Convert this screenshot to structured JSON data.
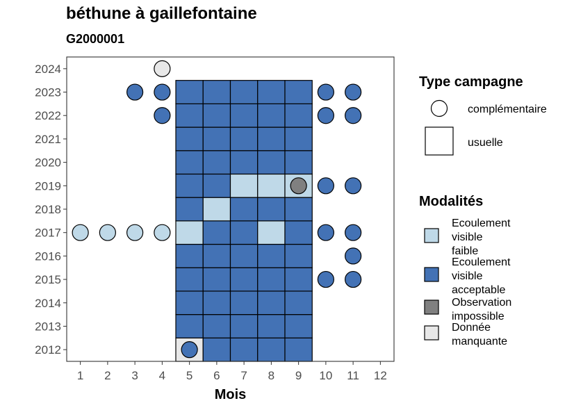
{
  "chart_data": {
    "type": "heatmap",
    "title": "béthune à gaillefontaine",
    "subtitle": "G2000001",
    "xlabel": "Mois",
    "ylabel": "",
    "x_ticks": [
      1,
      2,
      3,
      4,
      5,
      6,
      7,
      8,
      9,
      10,
      11,
      12
    ],
    "y_ticks": [
      2012,
      2013,
      2014,
      2015,
      2016,
      2017,
      2018,
      2019,
      2020,
      2021,
      2022,
      2023,
      2024
    ],
    "xlim": [
      0.5,
      12.5
    ],
    "ylim": [
      2011.5,
      2024.5
    ],
    "grid": false,
    "legend": {
      "placement": "right",
      "type_title": "Type campagne",
      "type_items": [
        {
          "label": "complémentaire",
          "shape": "circle"
        },
        {
          "label": "usuelle",
          "shape": "square"
        }
      ],
      "mod_title": "Modalités",
      "mod_items": [
        {
          "key": "faible",
          "lines": [
            "Ecoulement",
            "visible",
            "faible"
          ],
          "color": "#BFD9E8"
        },
        {
          "key": "acceptable",
          "lines": [
            "Ecoulement",
            "visible",
            "acceptable"
          ],
          "color": "#4372B5"
        },
        {
          "key": "impossible",
          "lines": [
            "Observation",
            "impossible"
          ],
          "color": "#808080"
        },
        {
          "key": "manquante",
          "lines": [
            "Donnée",
            "manquante"
          ],
          "color": "#E8E8E8"
        }
      ]
    },
    "colors": {
      "faible": "#BFD9E8",
      "acceptable": "#4372B5",
      "impossible": "#808080",
      "manquante": "#E8E8E8"
    },
    "usuelle": [
      {
        "month": 5,
        "year": 2012,
        "mod": "manquante"
      },
      {
        "month": 6,
        "year": 2012,
        "mod": "acceptable"
      },
      {
        "month": 7,
        "year": 2012,
        "mod": "acceptable"
      },
      {
        "month": 8,
        "year": 2012,
        "mod": "acceptable"
      },
      {
        "month": 9,
        "year": 2012,
        "mod": "acceptable"
      },
      {
        "month": 5,
        "year": 2013,
        "mod": "acceptable"
      },
      {
        "month": 6,
        "year": 2013,
        "mod": "acceptable"
      },
      {
        "month": 7,
        "year": 2013,
        "mod": "acceptable"
      },
      {
        "month": 8,
        "year": 2013,
        "mod": "acceptable"
      },
      {
        "month": 9,
        "year": 2013,
        "mod": "acceptable"
      },
      {
        "month": 5,
        "year": 2014,
        "mod": "acceptable"
      },
      {
        "month": 6,
        "year": 2014,
        "mod": "acceptable"
      },
      {
        "month": 7,
        "year": 2014,
        "mod": "acceptable"
      },
      {
        "month": 8,
        "year": 2014,
        "mod": "acceptable"
      },
      {
        "month": 9,
        "year": 2014,
        "mod": "acceptable"
      },
      {
        "month": 5,
        "year": 2015,
        "mod": "acceptable"
      },
      {
        "month": 6,
        "year": 2015,
        "mod": "acceptable"
      },
      {
        "month": 7,
        "year": 2015,
        "mod": "acceptable"
      },
      {
        "month": 8,
        "year": 2015,
        "mod": "acceptable"
      },
      {
        "month": 9,
        "year": 2015,
        "mod": "acceptable"
      },
      {
        "month": 5,
        "year": 2016,
        "mod": "acceptable"
      },
      {
        "month": 6,
        "year": 2016,
        "mod": "acceptable"
      },
      {
        "month": 7,
        "year": 2016,
        "mod": "acceptable"
      },
      {
        "month": 8,
        "year": 2016,
        "mod": "acceptable"
      },
      {
        "month": 9,
        "year": 2016,
        "mod": "acceptable"
      },
      {
        "month": 5,
        "year": 2017,
        "mod": "faible"
      },
      {
        "month": 6,
        "year": 2017,
        "mod": "acceptable"
      },
      {
        "month": 7,
        "year": 2017,
        "mod": "acceptable"
      },
      {
        "month": 8,
        "year": 2017,
        "mod": "faible"
      },
      {
        "month": 9,
        "year": 2017,
        "mod": "acceptable"
      },
      {
        "month": 5,
        "year": 2018,
        "mod": "acceptable"
      },
      {
        "month": 6,
        "year": 2018,
        "mod": "faible"
      },
      {
        "month": 7,
        "year": 2018,
        "mod": "acceptable"
      },
      {
        "month": 8,
        "year": 2018,
        "mod": "acceptable"
      },
      {
        "month": 9,
        "year": 2018,
        "mod": "acceptable"
      },
      {
        "month": 5,
        "year": 2019,
        "mod": "acceptable"
      },
      {
        "month": 6,
        "year": 2019,
        "mod": "acceptable"
      },
      {
        "month": 7,
        "year": 2019,
        "mod": "faible"
      },
      {
        "month": 8,
        "year": 2019,
        "mod": "faible"
      },
      {
        "month": 9,
        "year": 2019,
        "mod": "faible"
      },
      {
        "month": 5,
        "year": 2020,
        "mod": "acceptable"
      },
      {
        "month": 6,
        "year": 2020,
        "mod": "acceptable"
      },
      {
        "month": 7,
        "year": 2020,
        "mod": "acceptable"
      },
      {
        "month": 8,
        "year": 2020,
        "mod": "acceptable"
      },
      {
        "month": 9,
        "year": 2020,
        "mod": "acceptable"
      },
      {
        "month": 5,
        "year": 2021,
        "mod": "acceptable"
      },
      {
        "month": 6,
        "year": 2021,
        "mod": "acceptable"
      },
      {
        "month": 7,
        "year": 2021,
        "mod": "acceptable"
      },
      {
        "month": 8,
        "year": 2021,
        "mod": "acceptable"
      },
      {
        "month": 9,
        "year": 2021,
        "mod": "acceptable"
      },
      {
        "month": 5,
        "year": 2022,
        "mod": "acceptable"
      },
      {
        "month": 6,
        "year": 2022,
        "mod": "acceptable"
      },
      {
        "month": 7,
        "year": 2022,
        "mod": "acceptable"
      },
      {
        "month": 8,
        "year": 2022,
        "mod": "acceptable"
      },
      {
        "month": 9,
        "year": 2022,
        "mod": "acceptable"
      },
      {
        "month": 5,
        "year": 2023,
        "mod": "acceptable"
      },
      {
        "month": 6,
        "year": 2023,
        "mod": "acceptable"
      },
      {
        "month": 7,
        "year": 2023,
        "mod": "acceptable"
      },
      {
        "month": 8,
        "year": 2023,
        "mod": "acceptable"
      },
      {
        "month": 9,
        "year": 2023,
        "mod": "acceptable"
      }
    ],
    "complementaire": [
      {
        "month": 4,
        "year": 2024,
        "mod": "manquante"
      },
      {
        "month": 3,
        "year": 2023,
        "mod": "acceptable"
      },
      {
        "month": 4,
        "year": 2023,
        "mod": "acceptable"
      },
      {
        "month": 10,
        "year": 2023,
        "mod": "acceptable"
      },
      {
        "month": 11,
        "year": 2023,
        "mod": "acceptable"
      },
      {
        "month": 4,
        "year": 2022,
        "mod": "acceptable"
      },
      {
        "month": 10,
        "year": 2022,
        "mod": "acceptable"
      },
      {
        "month": 11,
        "year": 2022,
        "mod": "acceptable"
      },
      {
        "month": 9,
        "year": 2019,
        "mod": "impossible"
      },
      {
        "month": 10,
        "year": 2019,
        "mod": "acceptable"
      },
      {
        "month": 11,
        "year": 2019,
        "mod": "acceptable"
      },
      {
        "month": 1,
        "year": 2017,
        "mod": "faible"
      },
      {
        "month": 2,
        "year": 2017,
        "mod": "faible"
      },
      {
        "month": 3,
        "year": 2017,
        "mod": "faible"
      },
      {
        "month": 4,
        "year": 2017,
        "mod": "faible"
      },
      {
        "month": 10,
        "year": 2017,
        "mod": "acceptable"
      },
      {
        "month": 11,
        "year": 2017,
        "mod": "acceptable"
      },
      {
        "month": 11,
        "year": 2016,
        "mod": "acceptable"
      },
      {
        "month": 10,
        "year": 2015,
        "mod": "acceptable"
      },
      {
        "month": 11,
        "year": 2015,
        "mod": "acceptable"
      },
      {
        "month": 5,
        "year": 2012,
        "mod": "acceptable"
      }
    ]
  }
}
